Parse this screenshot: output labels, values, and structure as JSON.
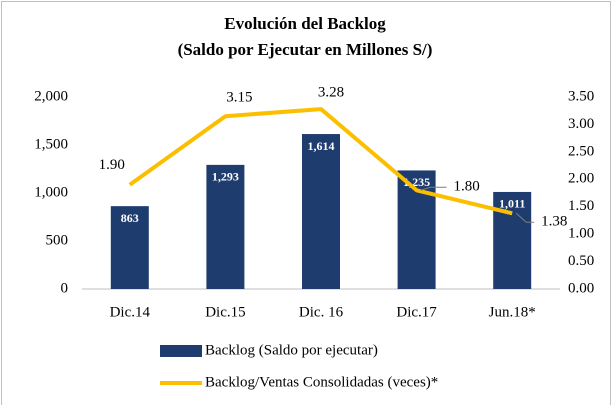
{
  "chart_data": {
    "type": "bar-line",
    "title": "Evolución  del Backlog",
    "subtitle": "(Saldo por Ejecutar  en Millones S/)",
    "categories": [
      "Dic.14",
      "Dic.15",
      "Dic. 16",
      "Dic.17",
      "Jun.18*"
    ],
    "series": [
      {
        "name": "Backlog (Saldo por ejecutar)",
        "type": "bar",
        "color": "#1f3c6e",
        "values": [
          863,
          1293,
          1614,
          1235,
          1011
        ],
        "value_labels": [
          "863",
          "1,293",
          "1,614",
          "1,235",
          "1,011"
        ]
      },
      {
        "name": "Backlog/Ventas Consolidadas (veces)*",
        "type": "line",
        "axis": "y2",
        "color": "#fbbf00",
        "values": [
          1.9,
          3.15,
          3.28,
          1.8,
          1.38
        ],
        "value_labels": [
          "1.90",
          "3.15",
          "3.28",
          "1.80",
          "1.38"
        ]
      }
    ],
    "ylim": [
      0,
      2000
    ],
    "yticks": [
      0,
      500,
      {
        "value": 1000,
        "label": "1,000"
      },
      {
        "value": 1500,
        "label": "1,500"
      },
      {
        "value": 2000,
        "label": "2,000"
      }
    ],
    "y2lim": [
      0,
      3.5
    ],
    "y2ticks": [
      {
        "value": 0,
        "label": "0.00"
      },
      {
        "value": 0.5,
        "label": "0.50"
      },
      {
        "value": 1,
        "label": "1.00"
      },
      {
        "value": 1.5,
        "label": "1.50"
      },
      {
        "value": 2,
        "label": "2.00"
      },
      {
        "value": 2.5,
        "label": "2.50"
      },
      {
        "value": 3,
        "label": "3.00"
      },
      {
        "value": 3.5,
        "label": "3.50"
      }
    ],
    "grid": false,
    "legend": "bottom"
  }
}
